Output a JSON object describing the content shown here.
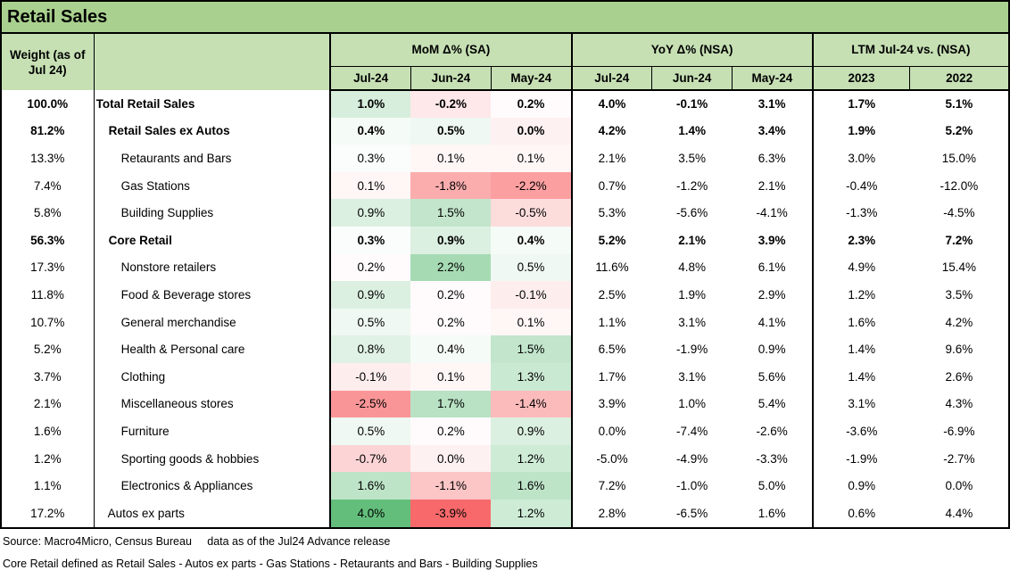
{
  "title": "Retail Sales",
  "header": {
    "weight_label": "Weight (as of Jul 24)",
    "groups": [
      {
        "label": "MoM Δ% (SA)",
        "cols": [
          "Jul-24",
          "Jun-24",
          "May-24"
        ]
      },
      {
        "label": "YoY Δ% (NSA)",
        "cols": [
          "Jul-24",
          "Jun-24",
          "May-24"
        ]
      },
      {
        "label": "LTM Jul-24 vs. (NSA)",
        "cols": [
          "2023",
          "2022"
        ]
      }
    ]
  },
  "heatmap": {
    "green": "#63BE7B",
    "red": "#F8696B",
    "white": "#FFFFFF",
    "mid": 0.25,
    "min": -3.9,
    "max": 4.0,
    "gamma": 0.85
  },
  "rows": [
    {
      "weight": "100.0%",
      "name": "Total Retail Sales",
      "indent": 2,
      "bold": true,
      "mom": [
        "1.0%",
        "-0.2%",
        "0.2%"
      ],
      "yoy": [
        "4.0%",
        "-0.1%",
        "3.1%"
      ],
      "ltm": [
        "1.7%",
        "5.1%"
      ]
    },
    {
      "weight": "81.2%",
      "name": "Retail Sales ex Autos",
      "indent": 16,
      "bold": true,
      "mom": [
        "0.4%",
        "0.5%",
        "0.0%"
      ],
      "yoy": [
        "4.2%",
        "1.4%",
        "3.4%"
      ],
      "ltm": [
        "1.9%",
        "5.2%"
      ]
    },
    {
      "weight": "13.3%",
      "name": "Retaurants and Bars",
      "indent": 30,
      "bold": false,
      "mom": [
        "0.3%",
        "0.1%",
        "0.1%"
      ],
      "yoy": [
        "2.1%",
        "3.5%",
        "6.3%"
      ],
      "ltm": [
        "3.0%",
        "15.0%"
      ]
    },
    {
      "weight": "7.4%",
      "name": "Gas Stations",
      "indent": 30,
      "bold": false,
      "mom": [
        "0.1%",
        "-1.8%",
        "-2.2%"
      ],
      "yoy": [
        "0.7%",
        "-1.2%",
        "2.1%"
      ],
      "ltm": [
        "-0.4%",
        "-12.0%"
      ]
    },
    {
      "weight": "5.8%",
      "name": "Building Supplies",
      "indent": 30,
      "bold": false,
      "mom": [
        "0.9%",
        "1.5%",
        "-0.5%"
      ],
      "yoy": [
        "5.3%",
        "-5.6%",
        "-4.1%"
      ],
      "ltm": [
        "-1.3%",
        "-4.5%"
      ]
    },
    {
      "weight": "56.3%",
      "name": "Core Retail",
      "indent": 16,
      "bold": true,
      "mom": [
        "0.3%",
        "0.9%",
        "0.4%"
      ],
      "yoy": [
        "5.2%",
        "2.1%",
        "3.9%"
      ],
      "ltm": [
        "2.3%",
        "7.2%"
      ]
    },
    {
      "weight": "17.3%",
      "name": "Nonstore retailers",
      "indent": 30,
      "bold": false,
      "mom": [
        "0.2%",
        "2.2%",
        "0.5%"
      ],
      "yoy": [
        "11.6%",
        "4.8%",
        "6.1%"
      ],
      "ltm": [
        "4.9%",
        "15.4%"
      ]
    },
    {
      "weight": "11.8%",
      "name": "Food & Beverage stores",
      "indent": 30,
      "bold": false,
      "mom": [
        "0.9%",
        "0.2%",
        "-0.1%"
      ],
      "yoy": [
        "2.5%",
        "1.9%",
        "2.9%"
      ],
      "ltm": [
        "1.2%",
        "3.5%"
      ]
    },
    {
      "weight": "10.7%",
      "name": "General merchandise",
      "indent": 30,
      "bold": false,
      "mom": [
        "0.5%",
        "0.2%",
        "0.1%"
      ],
      "yoy": [
        "1.1%",
        "3.1%",
        "4.1%"
      ],
      "ltm": [
        "1.6%",
        "4.2%"
      ]
    },
    {
      "weight": "5.2%",
      "name": "Health & Personal care",
      "indent": 30,
      "bold": false,
      "mom": [
        "0.8%",
        "0.4%",
        "1.5%"
      ],
      "yoy": [
        "6.5%",
        "-1.9%",
        "0.9%"
      ],
      "ltm": [
        "1.4%",
        "9.6%"
      ]
    },
    {
      "weight": "3.7%",
      "name": "Clothing",
      "indent": 30,
      "bold": false,
      "mom": [
        "-0.1%",
        "0.1%",
        "1.3%"
      ],
      "yoy": [
        "1.7%",
        "3.1%",
        "5.6%"
      ],
      "ltm": [
        "1.4%",
        "2.6%"
      ]
    },
    {
      "weight": "2.1%",
      "name": "Miscellaneous stores",
      "indent": 30,
      "bold": false,
      "mom": [
        "-2.5%",
        "1.7%",
        "-1.4%"
      ],
      "yoy": [
        "3.9%",
        "1.0%",
        "5.4%"
      ],
      "ltm": [
        "3.1%",
        "4.3%"
      ]
    },
    {
      "weight": "1.6%",
      "name": "Furniture",
      "indent": 30,
      "bold": false,
      "mom": [
        "0.5%",
        "0.2%",
        "0.9%"
      ],
      "yoy": [
        "0.0%",
        "-7.4%",
        "-2.6%"
      ],
      "ltm": [
        "-3.6%",
        "-6.9%"
      ]
    },
    {
      "weight": "1.2%",
      "name": "Sporting goods & hobbies",
      "indent": 30,
      "bold": false,
      "mom": [
        "-0.7%",
        "0.0%",
        "1.2%"
      ],
      "yoy": [
        "-5.0%",
        "-4.9%",
        "-3.3%"
      ],
      "ltm": [
        "-1.9%",
        "-2.7%"
      ]
    },
    {
      "weight": "1.1%",
      "name": "Electronics & Appliances",
      "indent": 30,
      "bold": false,
      "mom": [
        "1.6%",
        "-1.1%",
        "1.6%"
      ],
      "yoy": [
        "7.2%",
        "-1.0%",
        "5.0%"
      ],
      "ltm": [
        "0.9%",
        "0.0%"
      ]
    },
    {
      "weight": "17.2%",
      "name": "Autos ex parts",
      "indent": 15,
      "bold": false,
      "mom": [
        "4.0%",
        "-3.9%",
        "1.2%"
      ],
      "yoy": [
        "2.8%",
        "-6.5%",
        "1.6%"
      ],
      "ltm": [
        "0.6%",
        "4.4%"
      ]
    }
  ],
  "footer": {
    "line1": "Source: Macro4Micro, Census Bureau     data as of the Jul24 Advance release",
    "line2": "Core Retail defined as Retail Sales - Autos ex parts - Gas Stations - Retaurants and Bars - Building Supplies"
  }
}
